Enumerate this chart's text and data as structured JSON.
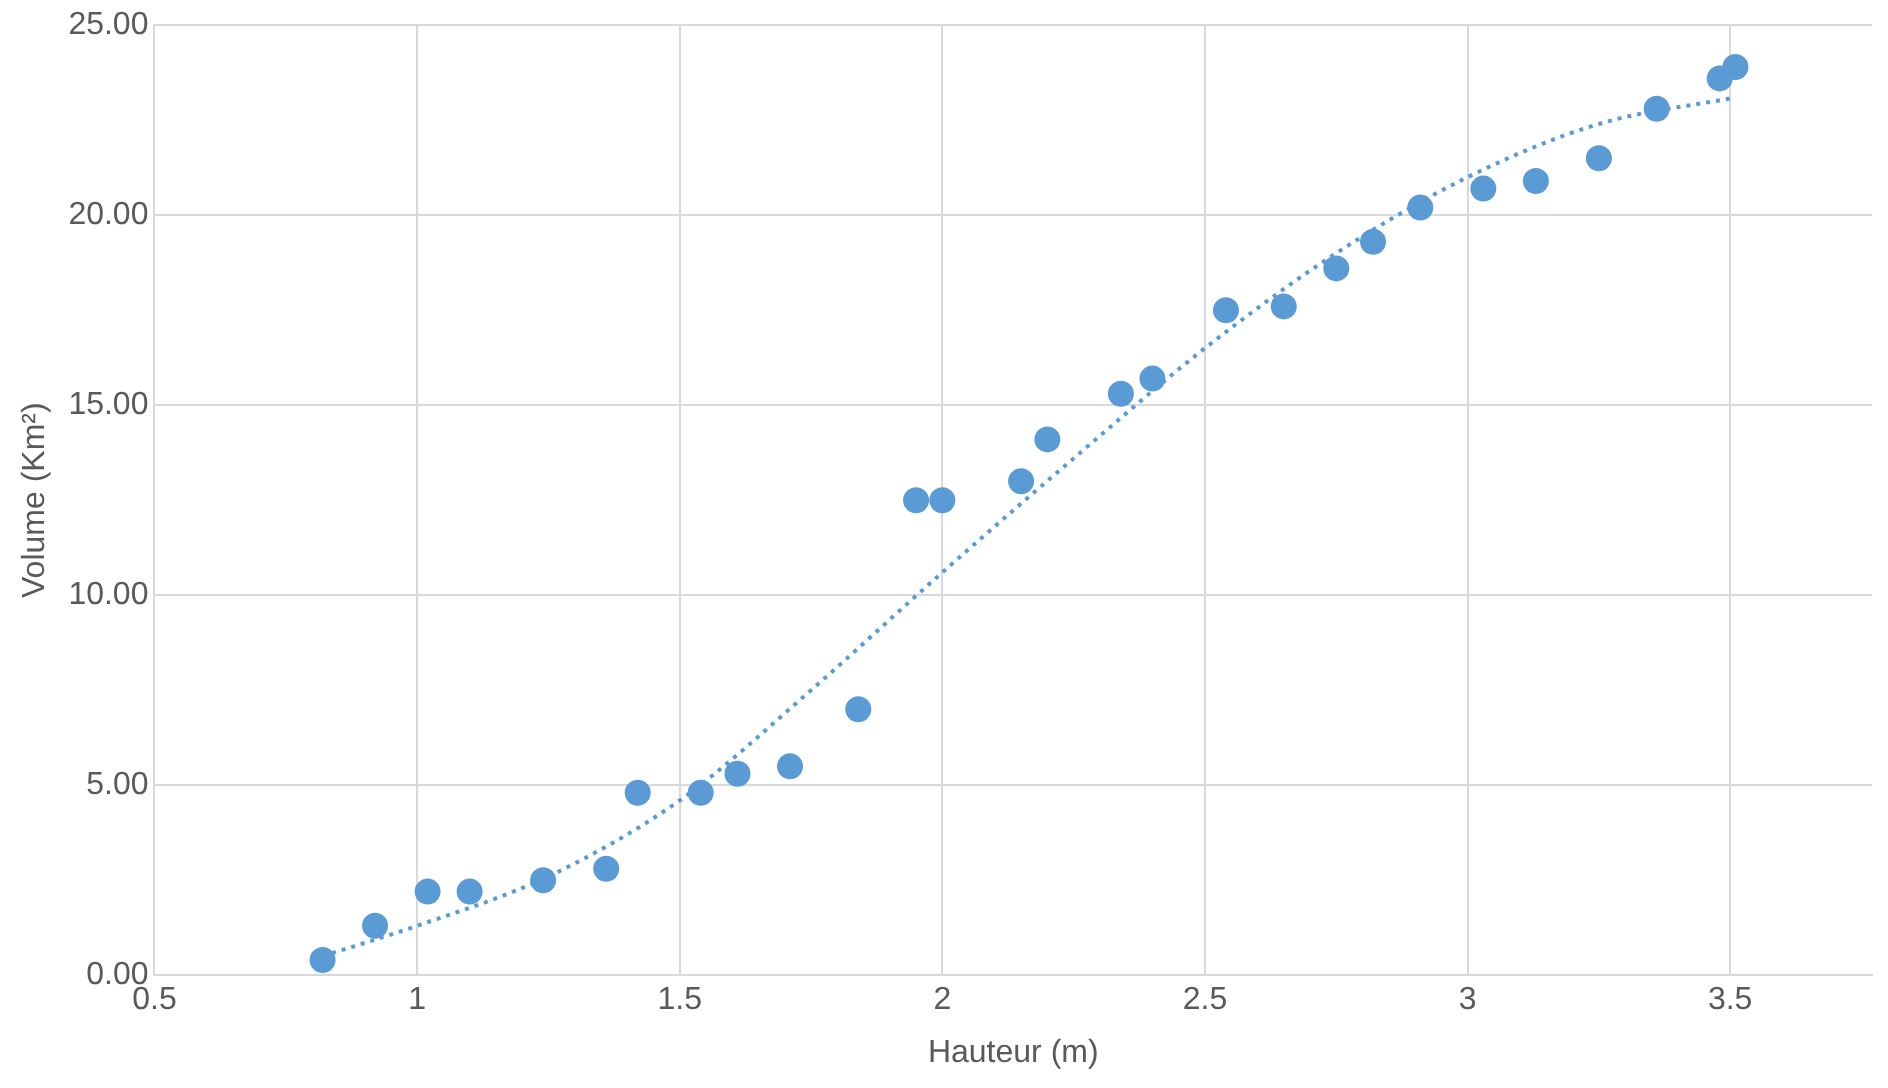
{
  "chart_data": {
    "type": "scatter",
    "xlabel": "Hauteur (m)",
    "ylabel": "Volume (Km²)",
    "xlim": [
      0.5,
      3.77
    ],
    "xticks": [
      0.5,
      1,
      1.5,
      2,
      2.5,
      3,
      3.5
    ],
    "ylim": [
      0,
      25
    ],
    "yticks": [
      {
        "value": 0,
        "label": "0.00"
      },
      {
        "value": 5,
        "label": "5.00"
      },
      {
        "value": 10,
        "label": "10.00"
      },
      {
        "value": 15,
        "label": "15.00"
      },
      {
        "value": 20,
        "label": "20.00"
      },
      {
        "value": 25,
        "label": "25.00"
      }
    ],
    "grid": true,
    "legend": false,
    "series": [
      {
        "color": "#5b9bd5",
        "marker": "circle",
        "x": [
          0.82,
          0.92,
          1.02,
          1.1,
          1.24,
          1.36,
          1.42,
          1.54,
          1.61,
          1.71,
          1.84,
          1.95,
          2.0,
          2.15,
          2.2,
          2.34,
          2.4,
          2.54,
          2.65,
          2.75,
          2.82,
          2.91,
          3.03,
          3.13,
          3.25,
          3.36,
          3.48,
          3.51
        ],
        "values": [
          0.4,
          1.3,
          2.2,
          2.2,
          2.5,
          2.8,
          4.8,
          4.8,
          5.3,
          5.5,
          7.0,
          12.5,
          12.5,
          13.0,
          14.1,
          15.3,
          15.7,
          17.5,
          17.6,
          18.6,
          19.3,
          20.2,
          20.7,
          20.9,
          21.5,
          22.8,
          23.6,
          23.9
        ]
      },
      {
        "type": "line",
        "color": "#5b9bd5",
        "marker": "none",
        "line_style": "dotted",
        "x": [
          0.82,
          1.0,
          1.25,
          1.5,
          1.75,
          2.0,
          2.25,
          2.5,
          2.75,
          3.0,
          3.25,
          3.51
        ],
        "values": [
          0.5,
          1.3,
          2.6,
          4.6,
          7.5,
          10.6,
          13.6,
          16.5,
          19.0,
          21.0,
          22.4,
          23.1
        ]
      }
    ]
  }
}
